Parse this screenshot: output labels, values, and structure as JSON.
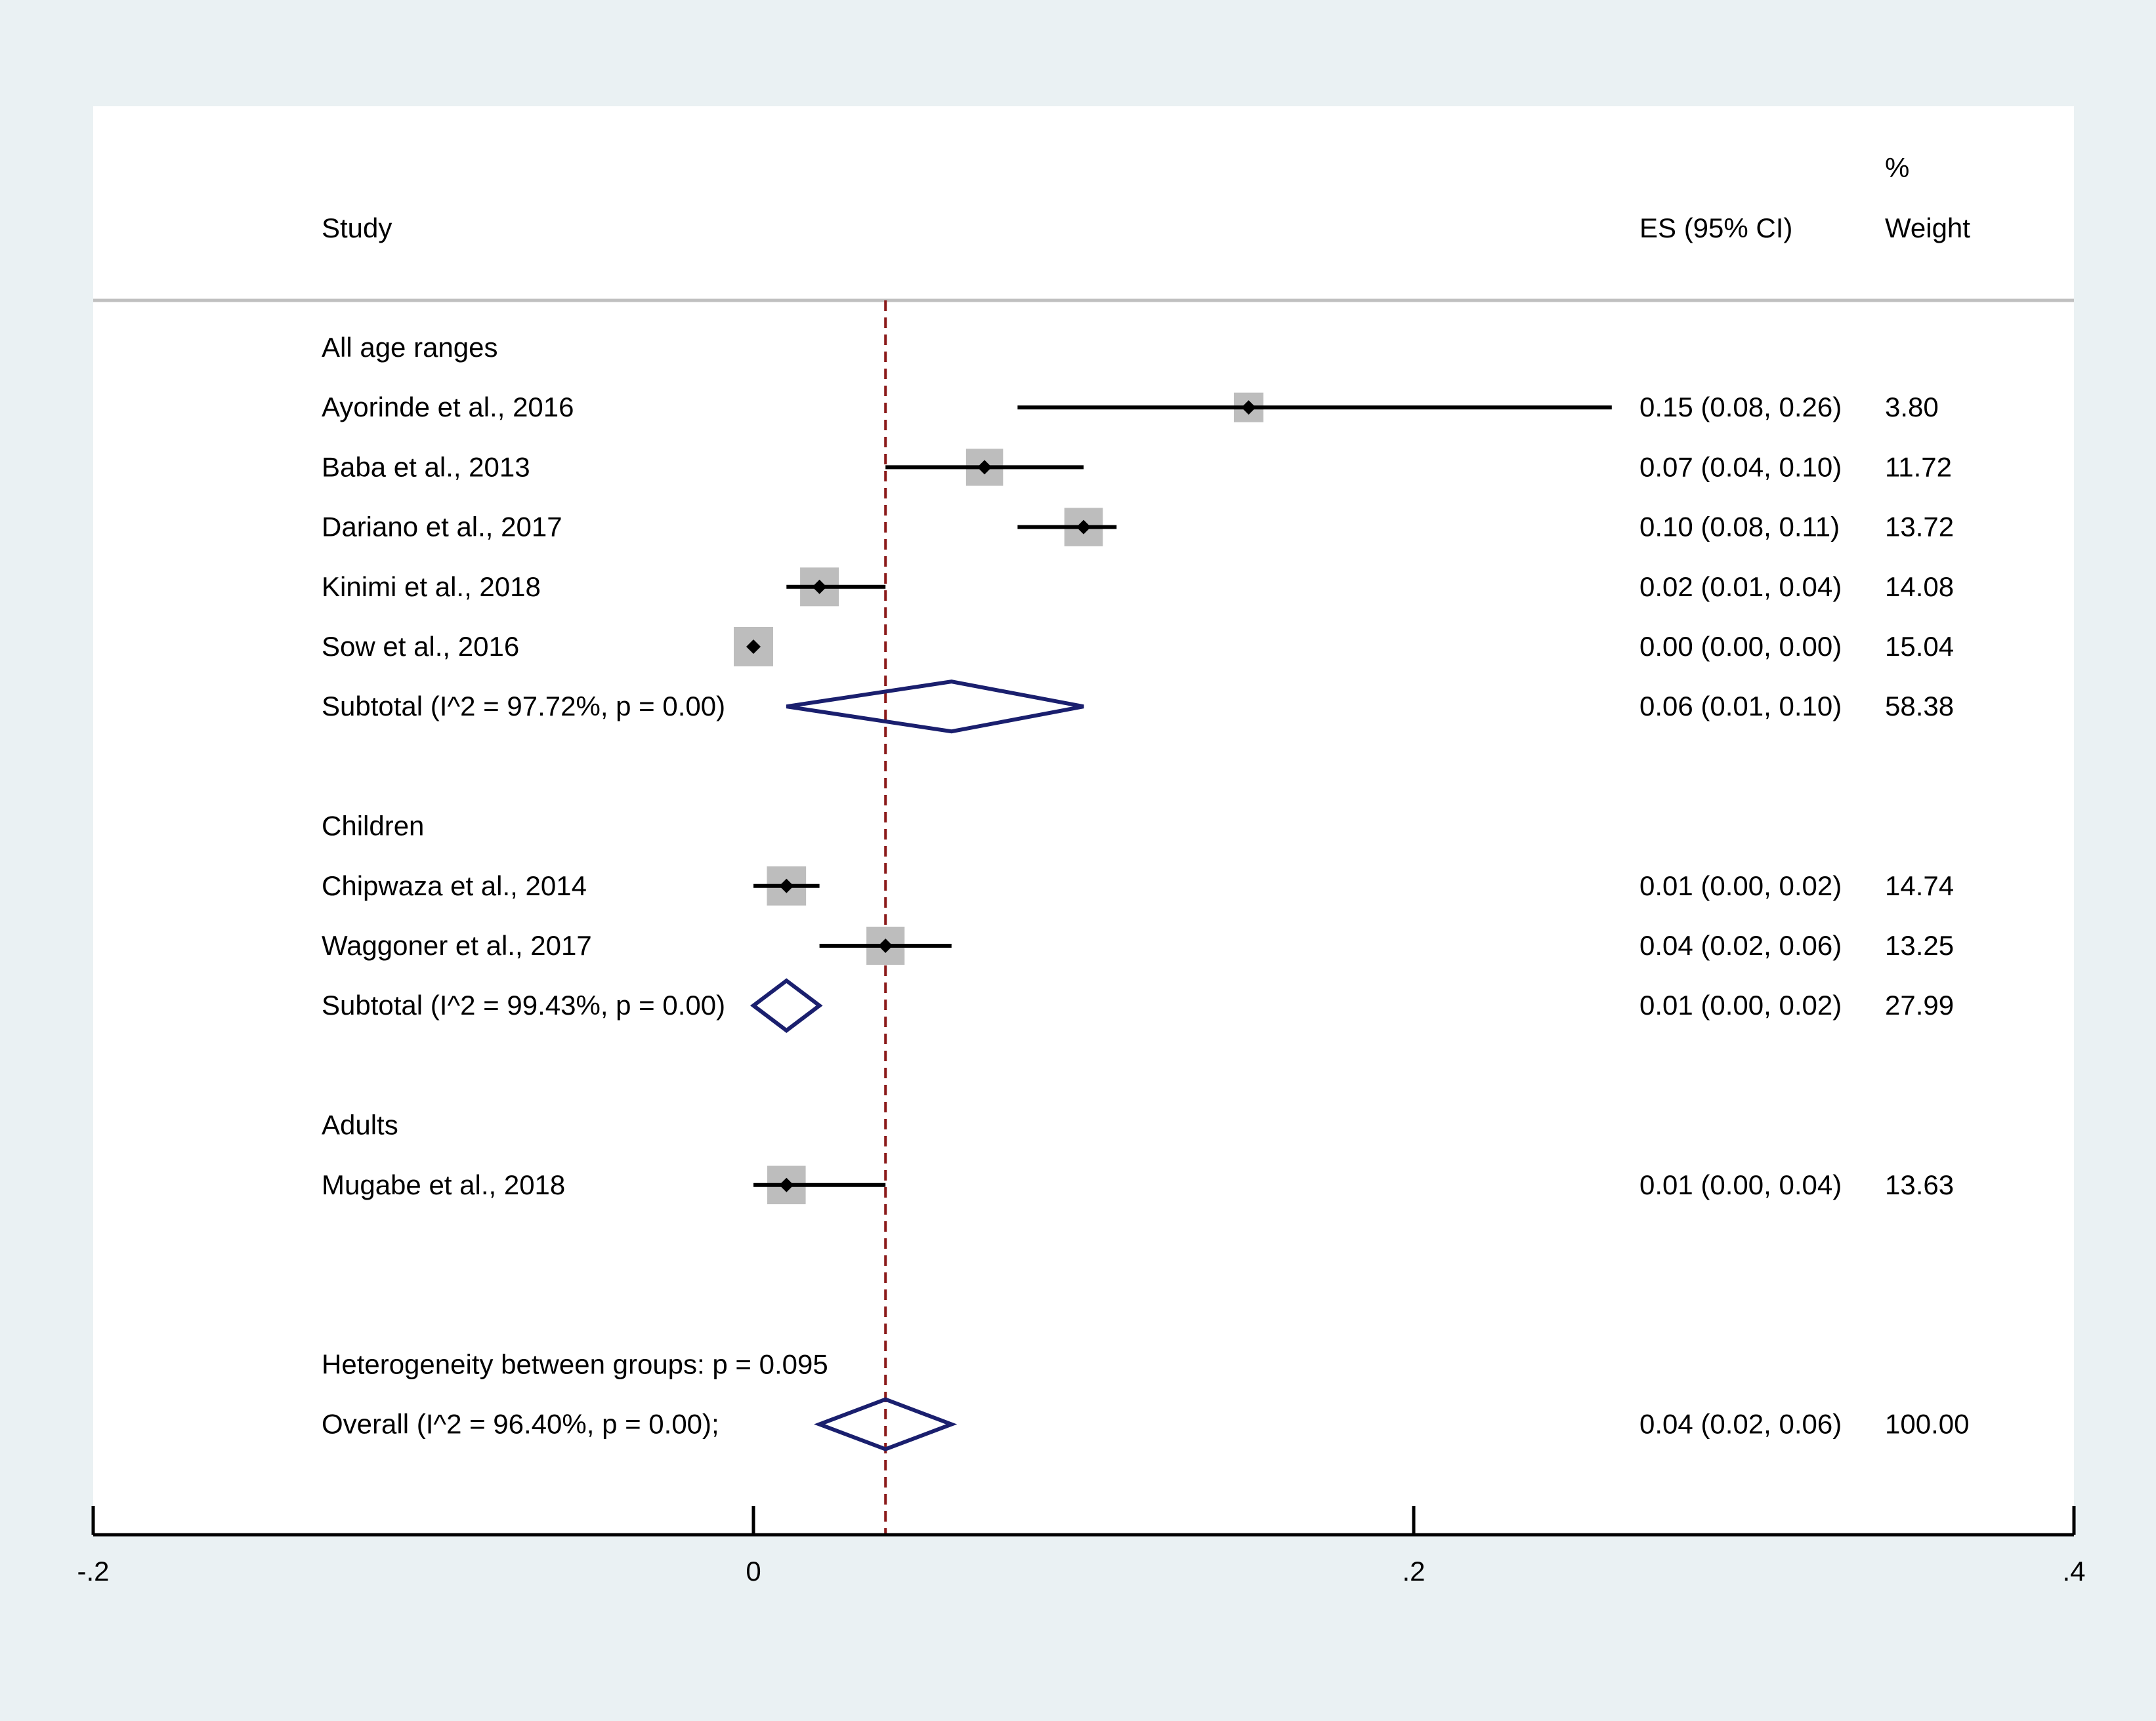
{
  "chart_data": {
    "type": "forest",
    "headers": {
      "study": "Study",
      "es": "ES (95% CI)",
      "weight_pct": "%",
      "weight": "Weight"
    },
    "xaxis": {
      "range": [
        -0.2,
        0.4
      ],
      "ticks": [
        -0.2,
        0,
        0.2,
        0.4
      ],
      "tick_labels": [
        "-.2",
        "0",
        ".2",
        ".4"
      ]
    },
    "reference_line": 0.04,
    "rows": [
      {
        "kind": "group",
        "label": "All age ranges"
      },
      {
        "kind": "study",
        "label": "Ayorinde et al., 2016",
        "es": 0.15,
        "lo": 0.08,
        "hi": 0.26,
        "es_text": "0.15 (0.08, 0.26)",
        "weight": 3.8,
        "weight_text": "3.80"
      },
      {
        "kind": "study",
        "label": "Baba et al., 2013",
        "es": 0.07,
        "lo": 0.04,
        "hi": 0.1,
        "es_text": "0.07 (0.04, 0.10)",
        "weight": 11.72,
        "weight_text": "11.72"
      },
      {
        "kind": "study",
        "label": "Dariano et al., 2017",
        "es": 0.1,
        "lo": 0.08,
        "hi": 0.11,
        "es_text": "0.10 (0.08, 0.11)",
        "weight": 13.72,
        "weight_text": "13.72"
      },
      {
        "kind": "study",
        "label": "Kinimi et al., 2018",
        "es": 0.02,
        "lo": 0.01,
        "hi": 0.04,
        "es_text": "0.02 (0.01, 0.04)",
        "weight": 14.08,
        "weight_text": "14.08"
      },
      {
        "kind": "study",
        "label": "Sow et al., 2016",
        "es": 0.0,
        "lo": 0.0,
        "hi": 0.0,
        "es_text": "0.00 (0.00, 0.00)",
        "weight": 15.04,
        "weight_text": "15.04"
      },
      {
        "kind": "subtotal",
        "label": "Subtotal  (I^2 = 97.72%, p = 0.00)",
        "es": 0.06,
        "lo": 0.01,
        "hi": 0.1,
        "es_text": "0.06 (0.01, 0.10)",
        "weight": 58.38,
        "weight_text": "58.38"
      },
      {
        "kind": "spacer"
      },
      {
        "kind": "group",
        "label": "Children"
      },
      {
        "kind": "study",
        "label": "Chipwaza et al., 2014",
        "es": 0.01,
        "lo": 0.0,
        "hi": 0.02,
        "es_text": "0.01 (0.00, 0.02)",
        "weight": 14.74,
        "weight_text": "14.74"
      },
      {
        "kind": "study",
        "label": "Waggoner et al., 2017",
        "es": 0.04,
        "lo": 0.02,
        "hi": 0.06,
        "es_text": "0.04 (0.02, 0.06)",
        "weight": 13.25,
        "weight_text": "13.25"
      },
      {
        "kind": "subtotal",
        "label": "Subtotal  (I^2 = 99.43%, p = 0.00)",
        "es": 0.01,
        "lo": 0.0,
        "hi": 0.02,
        "es_text": "0.01 (0.00, 0.02)",
        "weight": 27.99,
        "weight_text": "27.99"
      },
      {
        "kind": "spacer"
      },
      {
        "kind": "group",
        "label": "Adults"
      },
      {
        "kind": "study",
        "label": "Mugabe et al., 2018",
        "es": 0.01,
        "lo": 0.0,
        "hi": 0.04,
        "es_text": "0.01 (0.00, 0.04)",
        "weight": 13.63,
        "weight_text": "13.63"
      },
      {
        "kind": "spacer"
      },
      {
        "kind": "spacer"
      },
      {
        "kind": "note",
        "label": "Heterogeneity between groups: p = 0.095"
      },
      {
        "kind": "overall",
        "label": "Overall  (I^2 = 96.40%, p = 0.00);",
        "es": 0.04,
        "lo": 0.02,
        "hi": 0.06,
        "es_text": "0.04 (0.02, 0.06)",
        "weight": 100.0,
        "weight_text": "100.00"
      }
    ],
    "colors": {
      "frame_bg": "#eaf1f3",
      "plot_bg": "#ffffff",
      "ci_line": "#000000",
      "weight_box": "#bdbdbd",
      "point": "#000000",
      "diamond": "#1a1f6e",
      "reference_line": "#8b1a1a",
      "header_rule": "#c0c0c0",
      "axis": "#000000"
    }
  }
}
